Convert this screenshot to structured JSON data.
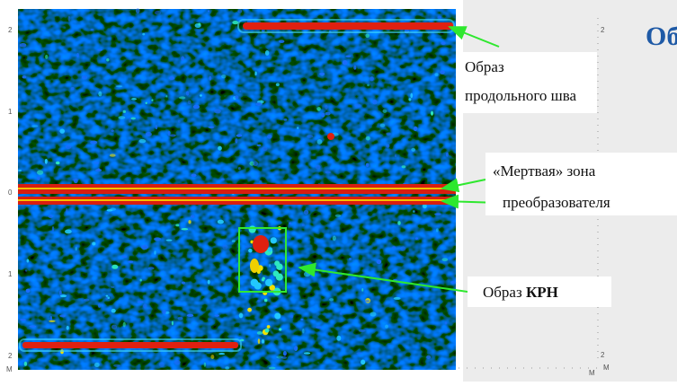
{
  "title": "Об",
  "scan": {
    "left_ticks": [
      "2",
      "1",
      "0",
      "1",
      "2"
    ],
    "left_unit": "M",
    "right_ticks": [
      "2",
      "2"
    ],
    "bottom_units": [
      "M",
      "M"
    ]
  },
  "annotations": [
    {
      "lines": [
        "Образ",
        "продольного шва"
      ]
    },
    {
      "lines": [
        "«Мертвая» зона",
        "преобразователя"
      ]
    },
    {
      "text": "Образ",
      "bold": "КРН"
    }
  ]
}
